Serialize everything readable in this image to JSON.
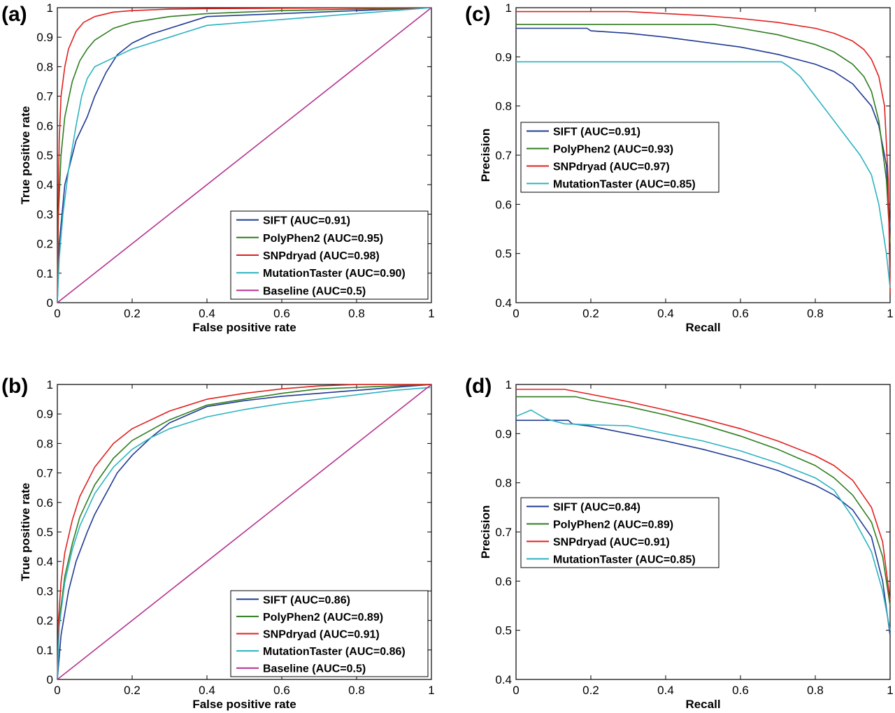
{
  "colors": {
    "SIFT": "#1f3a93",
    "PolyPhen2": "#2e7d1e",
    "SNPdryad": "#e0201e",
    "MutationTaster": "#2bb3c0",
    "Baseline": "#b4318f"
  },
  "chart_data": [
    {
      "panel": "(a)",
      "type": "line",
      "xlabel": "False positive rate",
      "ylabel": "True positive rate",
      "xlim": [
        0,
        1
      ],
      "ylim": [
        0,
        1
      ],
      "xticks": [
        0,
        0.2,
        0.4,
        0.6,
        0.8,
        1
      ],
      "yticks": [
        0,
        0.1,
        0.2,
        0.3,
        0.4,
        0.5,
        0.6,
        0.7,
        0.8,
        0.9,
        1
      ],
      "xtick_labels": [
        "0",
        "0.2",
        "0.4",
        "0.6",
        "0.8",
        "1"
      ],
      "ytick_labels": [
        "0",
        "0.1",
        "0.2",
        "0.3",
        "0.4",
        "0.5",
        "0.6",
        "0.7",
        "0.8",
        "0.9",
        "1"
      ],
      "legend_position": "bottom-right",
      "series": [
        {
          "name": "SIFT",
          "legend": "SIFT (AUC=0.91)",
          "x": [
            0,
            0.005,
            0.02,
            0.05,
            0.08,
            0.1,
            0.13,
            0.16,
            0.2,
            0.25,
            0.3,
            0.4,
            0.5,
            0.6,
            0.7,
            0.8,
            0.9,
            1
          ],
          "y": [
            0,
            0.2,
            0.4,
            0.55,
            0.63,
            0.7,
            0.78,
            0.84,
            0.88,
            0.91,
            0.93,
            0.97,
            0.975,
            0.98,
            0.985,
            0.99,
            0.995,
            1
          ]
        },
        {
          "name": "PolyPhen2",
          "legend": "PolyPhen2 (AUC=0.95)",
          "x": [
            0,
            0.003,
            0.01,
            0.02,
            0.04,
            0.06,
            0.08,
            0.1,
            0.15,
            0.2,
            0.3,
            0.4,
            0.5,
            0.6,
            0.8,
            1
          ],
          "y": [
            0,
            0.3,
            0.5,
            0.63,
            0.75,
            0.82,
            0.86,
            0.89,
            0.93,
            0.95,
            0.97,
            0.98,
            0.985,
            0.99,
            0.995,
            1
          ]
        },
        {
          "name": "SNPdryad",
          "legend": "SNPdryad (AUC=0.98)",
          "x": [
            0,
            0.002,
            0.005,
            0.01,
            0.02,
            0.03,
            0.05,
            0.07,
            0.1,
            0.15,
            0.2,
            0.3,
            0.4,
            0.6,
            0.8,
            1
          ],
          "y": [
            0,
            0.3,
            0.55,
            0.7,
            0.8,
            0.86,
            0.92,
            0.95,
            0.97,
            0.985,
            0.99,
            0.995,
            0.997,
            0.998,
            0.999,
            1
          ]
        },
        {
          "name": "MutationTaster",
          "legend": "MutationTaster (AUC=0.90)",
          "x": [
            0,
            0.005,
            0.015,
            0.03,
            0.05,
            0.065,
            0.08,
            0.1,
            0.15,
            0.2,
            0.25,
            0.3,
            0.4,
            0.5,
            0.6,
            0.7,
            0.8,
            0.9,
            1
          ],
          "y": [
            0,
            0.15,
            0.3,
            0.45,
            0.6,
            0.7,
            0.76,
            0.8,
            0.83,
            0.86,
            0.88,
            0.9,
            0.94,
            0.95,
            0.96,
            0.97,
            0.98,
            0.99,
            1
          ]
        },
        {
          "name": "Baseline",
          "legend": "Baseline (AUC=0.5)",
          "x": [
            0,
            1
          ],
          "y": [
            0,
            1
          ]
        }
      ]
    },
    {
      "panel": "(c)",
      "type": "line",
      "xlabel": "Recall",
      "ylabel": "Precision",
      "xlim": [
        0,
        1
      ],
      "ylim": [
        0.4,
        1
      ],
      "xticks": [
        0,
        0.2,
        0.4,
        0.6,
        0.8,
        1
      ],
      "yticks": [
        0.4,
        0.5,
        0.6,
        0.7,
        0.8,
        0.9,
        1
      ],
      "xtick_labels": [
        "0",
        "0.2",
        "0.4",
        "0.6",
        "0.8",
        "1"
      ],
      "ytick_labels": [
        "0.4",
        "0.5",
        "0.6",
        "0.7",
        "0.8",
        "0.9",
        "1"
      ],
      "legend_position": "center-left",
      "series": [
        {
          "name": "SIFT",
          "legend": "SIFT (AUC=0.91)",
          "x": [
            0,
            0.19,
            0.2,
            0.3,
            0.4,
            0.5,
            0.6,
            0.7,
            0.8,
            0.85,
            0.9,
            0.95,
            0.97,
            0.99,
            1
          ],
          "y": [
            0.958,
            0.958,
            0.953,
            0.948,
            0.94,
            0.93,
            0.92,
            0.905,
            0.885,
            0.87,
            0.845,
            0.8,
            0.76,
            0.68,
            0.55
          ]
        },
        {
          "name": "PolyPhen2",
          "legend": "PolyPhen2 (AUC=0.93)",
          "x": [
            0,
            0.53,
            0.6,
            0.7,
            0.8,
            0.85,
            0.9,
            0.93,
            0.95,
            0.97,
            0.99,
            1
          ],
          "y": [
            0.966,
            0.966,
            0.958,
            0.945,
            0.925,
            0.91,
            0.885,
            0.86,
            0.83,
            0.77,
            0.65,
            0.52
          ]
        },
        {
          "name": "SNPdryad",
          "legend": "SNPdryad (AUC=0.97)",
          "x": [
            0,
            0.3,
            0.4,
            0.5,
            0.6,
            0.7,
            0.8,
            0.85,
            0.9,
            0.93,
            0.95,
            0.97,
            0.985,
            0.995,
            1
          ],
          "y": [
            0.992,
            0.992,
            0.988,
            0.984,
            0.978,
            0.97,
            0.958,
            0.948,
            0.932,
            0.915,
            0.895,
            0.86,
            0.8,
            0.65,
            0.42
          ]
        },
        {
          "name": "MutationTaster",
          "legend": "MutationTaster (AUC=0.85)",
          "x": [
            0,
            0.71,
            0.73,
            0.76,
            0.8,
            0.84,
            0.88,
            0.92,
            0.95,
            0.97,
            0.98,
            0.99,
            1
          ],
          "y": [
            0.89,
            0.89,
            0.88,
            0.86,
            0.82,
            0.78,
            0.74,
            0.7,
            0.66,
            0.6,
            0.55,
            0.5,
            0.43
          ]
        }
      ]
    },
    {
      "panel": "(b)",
      "type": "line",
      "xlabel": "False positive rate",
      "ylabel": "True positive rate",
      "xlim": [
        0,
        1
      ],
      "ylim": [
        0,
        1
      ],
      "xticks": [
        0,
        0.2,
        0.4,
        0.6,
        0.8,
        1
      ],
      "yticks": [
        0,
        0.1,
        0.2,
        0.3,
        0.4,
        0.5,
        0.6,
        0.7,
        0.8,
        0.9,
        1
      ],
      "xtick_labels": [
        "0",
        "0.2",
        "0.4",
        "0.6",
        "0.8",
        "1"
      ],
      "ytick_labels": [
        "0",
        "0.1",
        "0.2",
        "0.3",
        "0.4",
        "0.5",
        "0.6",
        "0.7",
        "0.8",
        "0.9",
        "1"
      ],
      "legend_position": "bottom-right",
      "series": [
        {
          "name": "SIFT",
          "legend": "SIFT (AUC=0.86)",
          "x": [
            0,
            0.01,
            0.03,
            0.05,
            0.08,
            0.1,
            0.13,
            0.16,
            0.2,
            0.25,
            0.3,
            0.4,
            0.5,
            0.6,
            0.7,
            0.8,
            0.9,
            1
          ],
          "y": [
            0,
            0.15,
            0.3,
            0.4,
            0.5,
            0.56,
            0.63,
            0.7,
            0.76,
            0.82,
            0.87,
            0.925,
            0.945,
            0.96,
            0.97,
            0.98,
            0.99,
            1
          ]
        },
        {
          "name": "PolyPhen2",
          "legend": "PolyPhen2 (AUC=0.89)",
          "x": [
            0,
            0.005,
            0.02,
            0.04,
            0.06,
            0.1,
            0.15,
            0.2,
            0.3,
            0.4,
            0.5,
            0.6,
            0.7,
            0.8,
            0.9,
            1
          ],
          "y": [
            0,
            0.2,
            0.35,
            0.46,
            0.55,
            0.66,
            0.75,
            0.81,
            0.88,
            0.93,
            0.95,
            0.97,
            0.985,
            0.99,
            0.995,
            1
          ]
        },
        {
          "name": "SNPdryad",
          "legend": "SNPdryad (AUC=0.91)",
          "x": [
            0,
            0.003,
            0.01,
            0.02,
            0.04,
            0.06,
            0.1,
            0.15,
            0.2,
            0.3,
            0.4,
            0.5,
            0.6,
            0.7,
            0.8,
            1
          ],
          "y": [
            0,
            0.2,
            0.33,
            0.43,
            0.54,
            0.62,
            0.72,
            0.8,
            0.85,
            0.91,
            0.95,
            0.97,
            0.985,
            0.995,
            1,
            1
          ]
        },
        {
          "name": "MutationTaster",
          "legend": "MutationTaster (AUC=0.86)",
          "x": [
            0,
            0.005,
            0.02,
            0.04,
            0.06,
            0.1,
            0.15,
            0.2,
            0.25,
            0.3,
            0.4,
            0.5,
            0.6,
            0.7,
            0.8,
            0.9,
            1
          ],
          "y": [
            0,
            0.18,
            0.33,
            0.44,
            0.52,
            0.63,
            0.72,
            0.78,
            0.82,
            0.85,
            0.89,
            0.915,
            0.935,
            0.95,
            0.965,
            0.98,
            0.99
          ]
        },
        {
          "name": "Baseline",
          "legend": "Baseline (AUC=0.5)",
          "x": [
            0,
            1
          ],
          "y": [
            0,
            1
          ]
        }
      ]
    },
    {
      "panel": "(d)",
      "type": "line",
      "xlabel": "Recall",
      "ylabel": "Precision",
      "xlim": [
        0,
        1
      ],
      "ylim": [
        0.4,
        1
      ],
      "xticks": [
        0,
        0.2,
        0.4,
        0.6,
        0.8,
        1
      ],
      "yticks": [
        0.4,
        0.5,
        0.6,
        0.7,
        0.8,
        0.9,
        1
      ],
      "xtick_labels": [
        "0",
        "0.2",
        "0.4",
        "0.6",
        "0.8",
        "1"
      ],
      "ytick_labels": [
        "0.4",
        "0.5",
        "0.6",
        "0.7",
        "0.8",
        "0.9",
        "1"
      ],
      "legend_position": "center-left",
      "series": [
        {
          "name": "SIFT",
          "legend": "SIFT (AUC=0.84)",
          "x": [
            0,
            0.14,
            0.15,
            0.2,
            0.3,
            0.4,
            0.5,
            0.6,
            0.7,
            0.8,
            0.85,
            0.9,
            0.95,
            0.98,
            1
          ],
          "y": [
            0.927,
            0.927,
            0.92,
            0.915,
            0.9,
            0.885,
            0.868,
            0.848,
            0.825,
            0.795,
            0.775,
            0.745,
            0.69,
            0.6,
            0.49
          ]
        },
        {
          "name": "PolyPhen2",
          "legend": "PolyPhen2 (AUC=0.89)",
          "x": [
            0,
            0.16,
            0.2,
            0.3,
            0.4,
            0.5,
            0.6,
            0.7,
            0.8,
            0.85,
            0.9,
            0.95,
            0.98,
            1
          ],
          "y": [
            0.975,
            0.975,
            0.968,
            0.955,
            0.938,
            0.918,
            0.895,
            0.868,
            0.835,
            0.81,
            0.775,
            0.72,
            0.65,
            0.55
          ]
        },
        {
          "name": "SNPdryad",
          "legend": "SNPdryad (AUC=0.91)",
          "x": [
            0,
            0.13,
            0.2,
            0.3,
            0.4,
            0.5,
            0.6,
            0.7,
            0.8,
            0.85,
            0.9,
            0.95,
            0.98,
            1
          ],
          "y": [
            0.99,
            0.99,
            0.98,
            0.965,
            0.948,
            0.93,
            0.91,
            0.885,
            0.855,
            0.835,
            0.805,
            0.75,
            0.68,
            0.56
          ]
        },
        {
          "name": "MutationTaster",
          "legend": "MutationTaster (AUC=0.85)",
          "x": [
            0,
            0.04,
            0.08,
            0.13,
            0.2,
            0.3,
            0.4,
            0.5,
            0.6,
            0.7,
            0.8,
            0.85,
            0.9,
            0.95,
            0.98,
            1
          ],
          "y": [
            0.935,
            0.948,
            0.93,
            0.92,
            0.918,
            0.916,
            0.9,
            0.885,
            0.865,
            0.84,
            0.81,
            0.785,
            0.73,
            0.66,
            0.58,
            0.5
          ]
        }
      ]
    }
  ]
}
